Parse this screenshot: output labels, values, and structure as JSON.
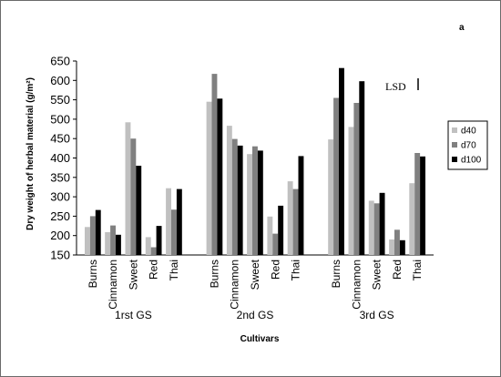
{
  "chart_data": {
    "type": "bar",
    "panel_label": "a",
    "ylabel": "Dry weight of herbal material (g/m²)",
    "xlabel": "Cultivars",
    "ylim": [
      150,
      650
    ],
    "yticks": [
      150,
      200,
      250,
      300,
      350,
      400,
      450,
      500,
      550,
      600,
      650
    ],
    "grid": false,
    "legend_position": "right",
    "lsd_label": "LSD",
    "groups": [
      {
        "name": "1rst GS",
        "categories": [
          "Burns",
          "Cinnamon",
          "Sweet",
          "Red",
          "Thai"
        ],
        "series": [
          {
            "name": "d40",
            "values": [
              222,
              209,
              492,
              196,
              322
            ]
          },
          {
            "name": "d70",
            "values": [
              250,
              226,
              450,
              170,
              267
            ]
          },
          {
            "name": "d100",
            "values": [
              266,
              202,
              380,
              225,
              320
            ]
          }
        ]
      },
      {
        "name": "2nd GS",
        "categories": [
          "Burns",
          "Cinnamon",
          "Sweet",
          "Red",
          "Thai"
        ],
        "series": [
          {
            "name": "d40",
            "values": [
              545,
              483,
              410,
              249,
              340
            ]
          },
          {
            "name": "d70",
            "values": [
              617,
              449,
              430,
              205,
              320
            ]
          },
          {
            "name": "d100",
            "values": [
              553,
              432,
              419,
              277,
              405
            ]
          }
        ]
      },
      {
        "name": "3rd GS",
        "categories": [
          "Burns",
          "Cinnamon",
          "Sweet",
          "Red",
          "Thai"
        ],
        "series": [
          {
            "name": "d40",
            "values": [
              448,
              480,
              290,
              190,
              335
            ]
          },
          {
            "name": "d70",
            "values": [
              555,
              542,
              283,
              215,
              413
            ]
          },
          {
            "name": "d100",
            "values": [
              632,
              598,
              310,
              188,
              404
            ]
          }
        ]
      }
    ],
    "colors": {
      "d40": "#c0c0c0",
      "d70": "#808080",
      "d100": "#000000"
    }
  }
}
